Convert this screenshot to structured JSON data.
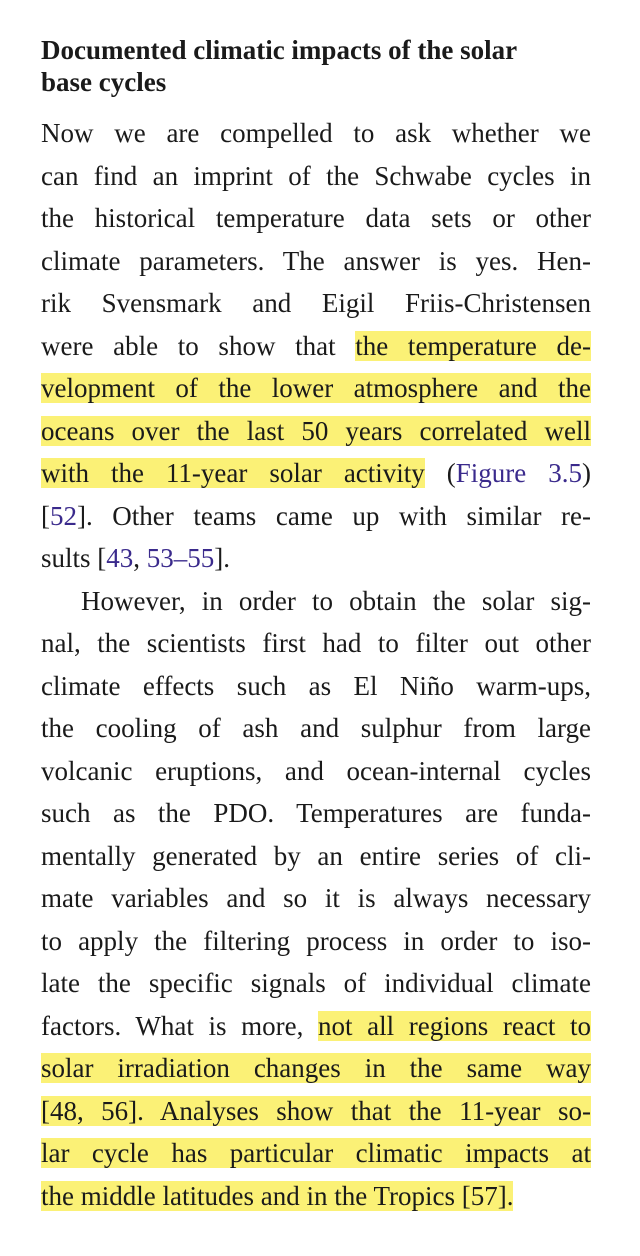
{
  "heading": {
    "line1": "Documented climatic impacts of the solar",
    "line2": "base cycles"
  },
  "p1": {
    "l1": "Now we are compelled to ask whether we",
    "l2": "can find an imprint of the Schwabe cycles in",
    "l3": "the historical temperature data sets or other",
    "l4": "climate parameters. The answer is yes. Hen-",
    "l5": "rik Svensmark and Eigil Friis-Christensen",
    "l6a": "were able to show that ",
    "l6b": "the temperature de-",
    "l7": "velopment of the lower atmosphere and the",
    "l8": "oceans over the last 50 years correlated well",
    "l9a": "with the 11-year solar activity",
    "l9b": " (",
    "l9c": "Figure 3.5",
    "l9d": ")",
    "l10a": "[",
    "l10b": "52",
    "l10c": "]. Other teams came up with similar re-",
    "l11a": "sults [",
    "l11b": "43",
    "l11c": ", ",
    "l11d": "53",
    "l11e": "–",
    "l11f": "55",
    "l11g": "]."
  },
  "p2": {
    "l1": "However, in order to obtain the solar sig-",
    "l2": "nal, the scientists first had to filter out other",
    "l3": "climate effects such as El Niño warm-ups,",
    "l4": "the cooling of ash and sulphur from large",
    "l5": "volcanic eruptions, and ocean-internal cycles",
    "l6": "such as the PDO. Temperatures are funda-",
    "l7": "mentally generated by an entire series of cli-",
    "l8": "mate variables and so it is always necessary",
    "l9": "to apply the filtering process in order to iso-",
    "l10": "late the specific signals of individual climate",
    "l11a": "factors. What is more, ",
    "l11b": "not all regions react to",
    "l12": "solar irradiation changes in the same way",
    "l13": "[48, 56]. Analyses show that the 11-year so-",
    "l14": "lar cycle has particular climatic impacts at",
    "l15": "the middle latitudes and in the Tropics [57]."
  },
  "colors": {
    "highlight": "#fbf176",
    "reference_link": "#3a2a8c",
    "text": "#1a1a1a"
  }
}
